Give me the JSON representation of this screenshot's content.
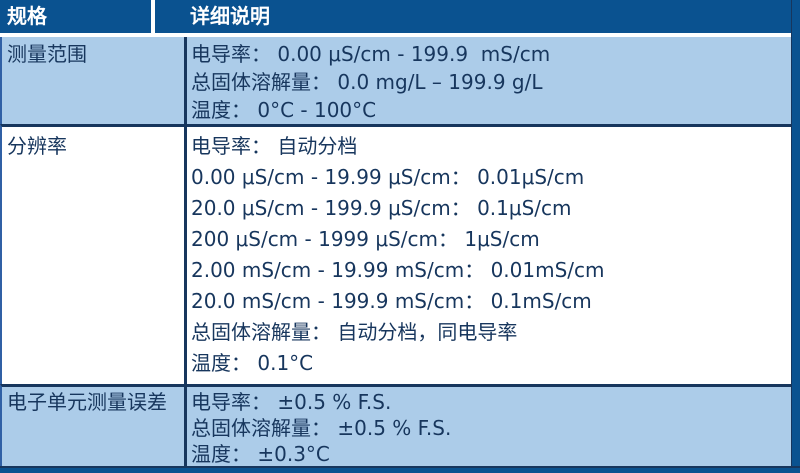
{
  "table": {
    "header": {
      "col1": "规格",
      "col2": "详细说明"
    },
    "rows": [
      {
        "label": "测量范围",
        "lines": [
          "电导率： 0.00 μS/cm - 199.9  mS/cm",
          "总固体溶解量： 0.0 mg/L – 199.9 g/L",
          "温度： 0°C - 100°C"
        ]
      },
      {
        "label": "分辨率",
        "lines": [
          "电导率： 自动分档",
          "0.00 μS/cm - 19.99 μS/cm： 0.01μS/cm",
          "20.0 μS/cm - 199.9 μS/cm： 0.1μS/cm",
          "200 μS/cm - 1999 μS/cm： 1μS/cm",
          "2.00 mS/cm - 19.99 mS/cm： 0.01mS/cm",
          "20.0 mS/cm - 199.9 mS/cm： 0.1mS/cm",
          "总固体溶解量： 自动分档，同电导率",
          "温度： 0.1°C"
        ]
      },
      {
        "label": "电子单元测量误差",
        "lines": [
          "电导率： ±0.5 % F.S.",
          "总固体溶解量： ±0.5 % F.S.",
          "温度： ±0.3°C"
        ]
      }
    ]
  },
  "colors": {
    "header_bg": "#0A5290",
    "header_text": "#FFFFFF",
    "row_light_blue_bg": "#ACCCE9",
    "row_white_bg": "#FFFFFF",
    "body_text": "#17365D",
    "divider_line": "#17365D",
    "left_edge_line": "#3060A5",
    "accent_bar": "#0A5290"
  }
}
